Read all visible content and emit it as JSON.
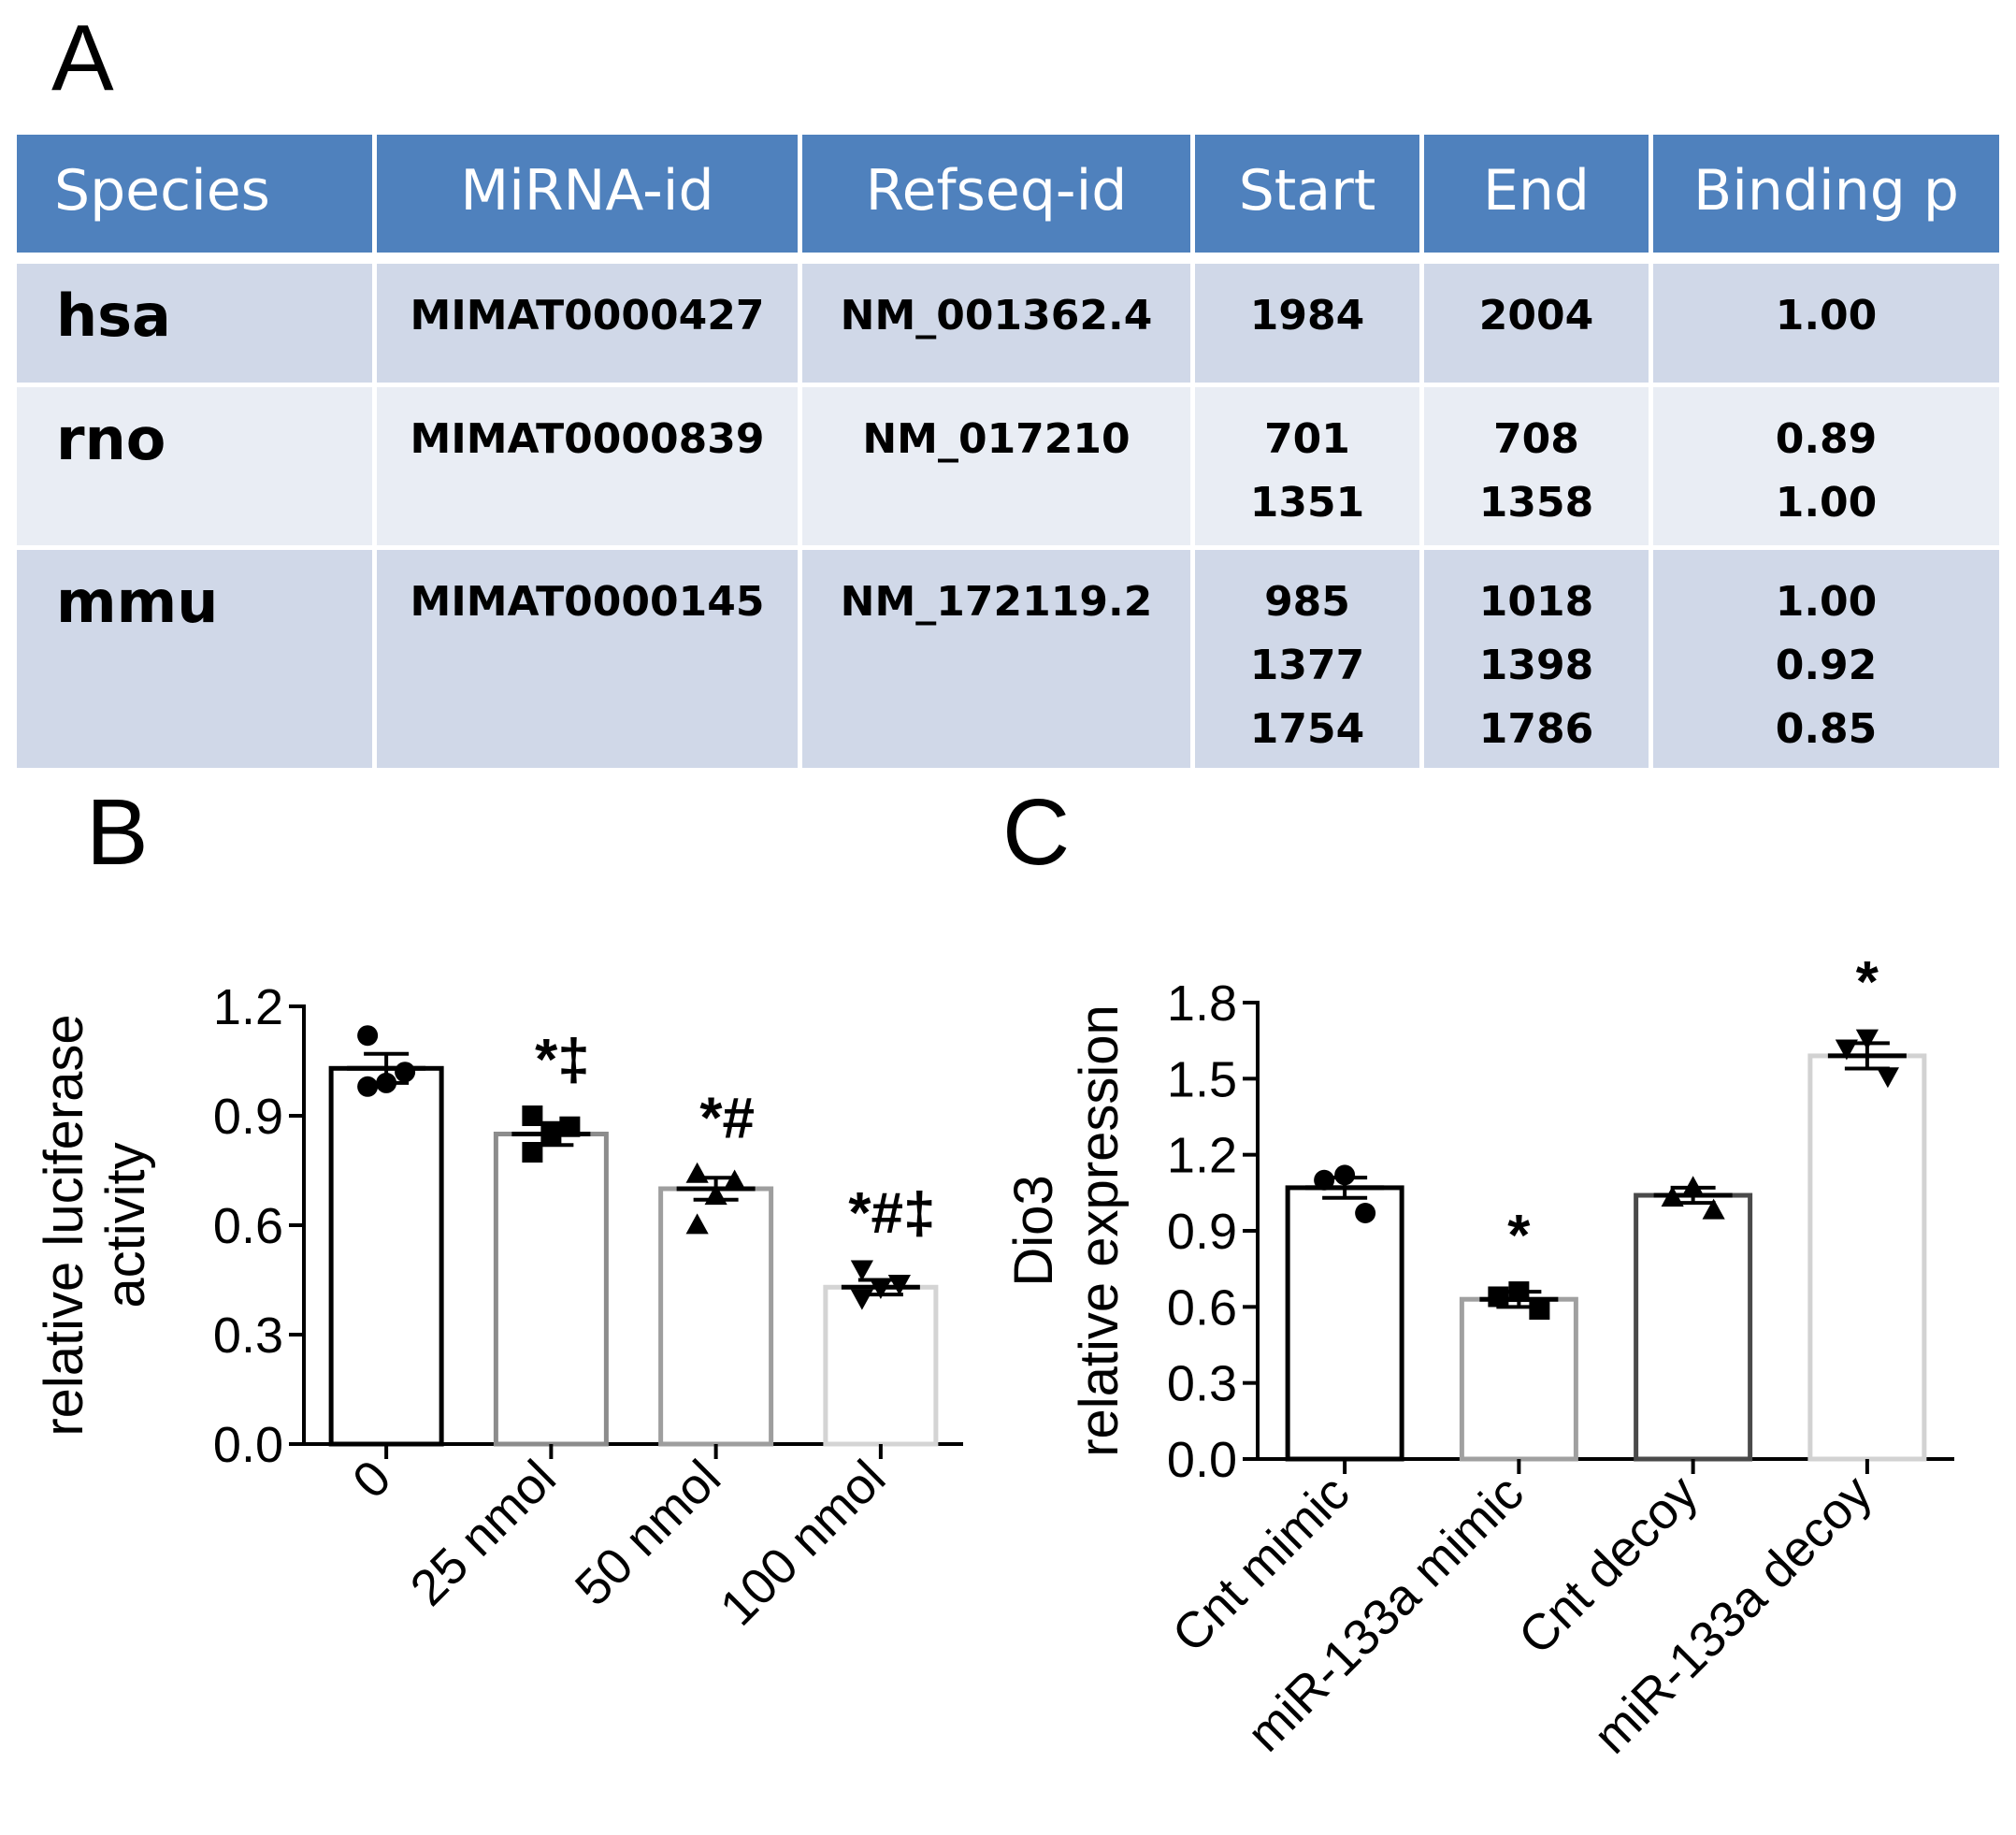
{
  "panels": {
    "a": "A",
    "b": "B",
    "c": "C"
  },
  "table": {
    "headers": [
      "Species",
      "MiRNA-id",
      "Refseq-id",
      "Start",
      "End",
      "Binding p"
    ],
    "rows": [
      {
        "species": "hsa",
        "mirna_id": "MIMAT0000427",
        "refseq_id": "NM_001362.4",
        "start": [
          "1984"
        ],
        "end": [
          "2004"
        ],
        "binding_p": [
          "1.00"
        ]
      },
      {
        "species": "rno",
        "mirna_id": "MIMAT0000839",
        "refseq_id": "NM_017210",
        "start": [
          "701",
          "1351"
        ],
        "end": [
          "708",
          "1358"
        ],
        "binding_p": [
          "0.89",
          "1.00"
        ]
      },
      {
        "species": "mmu",
        "mirna_id": "MIMAT0000145",
        "refseq_id": "NM_172119.2",
        "start": [
          "985",
          "1377",
          "1754"
        ],
        "end": [
          "1018",
          "1398",
          "1786"
        ],
        "binding_p": [
          "1.00",
          "0.92",
          "0.85"
        ]
      }
    ]
  },
  "chart_data": [
    {
      "panel": "B",
      "type": "bar",
      "ylabel": [
        "relative luciferase",
        "activity"
      ],
      "xlabel": "",
      "ylim": [
        0,
        1.2
      ],
      "yticks": [
        "0.0",
        "0.3",
        "0.6",
        "0.9",
        "1.2"
      ],
      "categories": [
        "0",
        "25 nmol",
        "50 nmol",
        "100 nmol"
      ],
      "values": [
        1.03,
        0.85,
        0.7,
        0.43
      ],
      "errors": [
        0.04,
        0.03,
        0.03,
        0.02
      ],
      "points": [
        [
          1.12,
          1.02,
          0.99,
          0.98
        ],
        [
          0.9,
          0.87,
          0.85,
          0.8
        ],
        [
          0.74,
          0.72,
          0.68,
          0.6
        ],
        [
          0.48,
          0.44,
          0.43,
          0.4
        ]
      ],
      "markers": [
        "circle",
        "square",
        "triangle-up",
        "triangle-down"
      ],
      "bar_colors": [
        "#000000",
        "#8c8c8c",
        "#9e9e9e",
        "#d4d4d4"
      ],
      "annotations": [
        "",
        "*‡",
        "*#",
        "*#‡"
      ]
    },
    {
      "panel": "C",
      "type": "bar",
      "ylabel": [
        "Dio3",
        "relative expression"
      ],
      "xlabel": "",
      "ylim": [
        0,
        1.8
      ],
      "yticks": [
        "0.0",
        "0.3",
        "0.6",
        "0.9",
        "1.2",
        "1.5",
        "1.8"
      ],
      "categories": [
        "Cnt mimic",
        "miR-133a mimic",
        "Cnt decoy",
        "miR-133a decoy"
      ],
      "values": [
        1.07,
        0.63,
        1.04,
        1.59
      ],
      "errors": [
        0.04,
        0.03,
        0.03,
        0.05
      ],
      "points": [
        [
          1.12,
          1.1,
          0.97
        ],
        [
          0.66,
          0.64,
          0.59
        ],
        [
          1.07,
          1.03,
          0.98
        ],
        [
          1.66,
          1.62,
          1.51
        ]
      ],
      "markers": [
        "circle",
        "square",
        "triangle-up",
        "triangle-down"
      ],
      "bar_colors": [
        "#000000",
        "#a0a0a0",
        "#4a4a4a",
        "#d2d2d2"
      ],
      "annotations": [
        "",
        "*",
        "",
        "*"
      ]
    }
  ]
}
